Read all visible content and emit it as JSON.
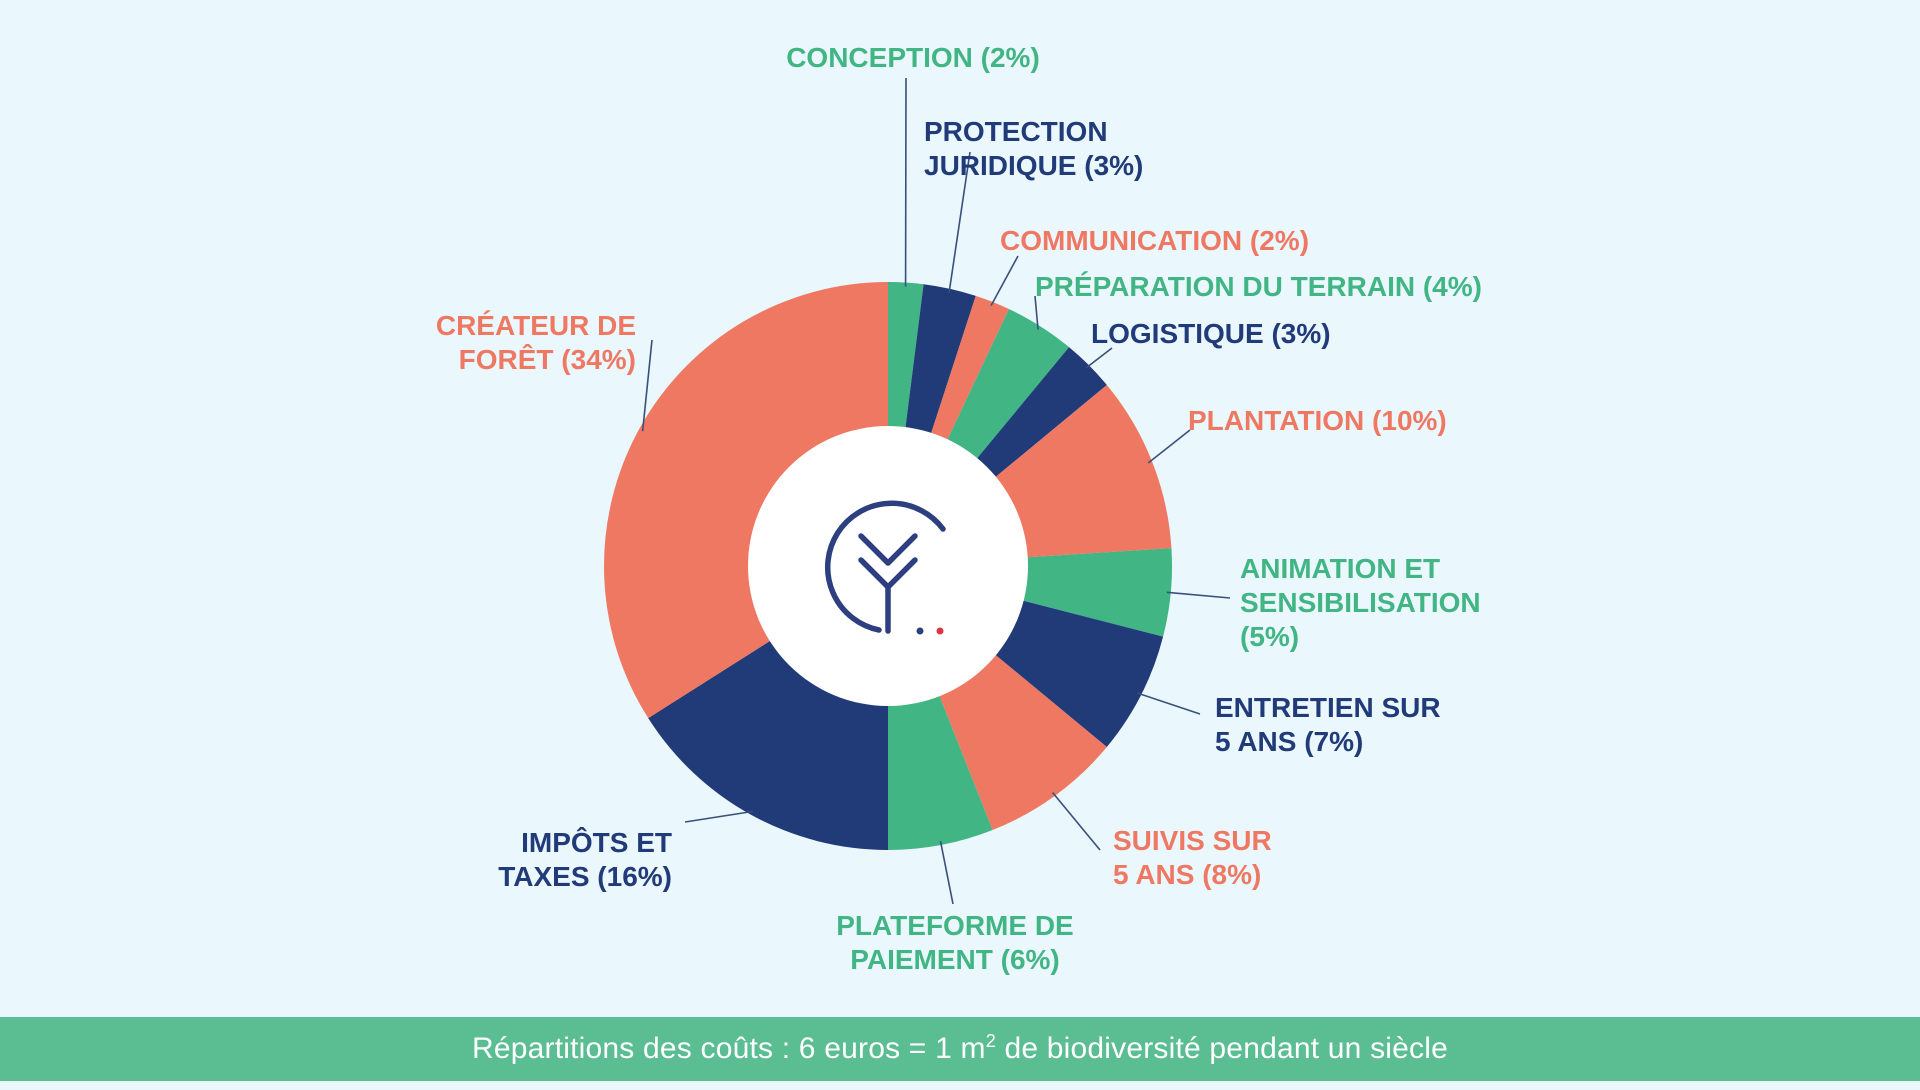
{
  "colors": {
    "background": "#eaf7fd",
    "coral": "#ef7863",
    "navy": "#213a78",
    "green": "#41b583",
    "caption_bar": "#5bbd92",
    "leader_line": "#3a4f7a"
  },
  "logo": {
    "icon": "leaf-check-logo-icon"
  },
  "caption": {
    "before": "Répartitions des coûts : 6 euros = 1 m",
    "sup": "2",
    "after": " de biodiversité pendant un siècle"
  },
  "chart_data": {
    "type": "pie",
    "donut": true,
    "start_angle_deg": 0,
    "direction": "clockwise",
    "slices": [
      {
        "name": "CONCEPTION",
        "value": 2,
        "value_label": "(2%)",
        "label_lines": [
          "CONCEPTION (2%)"
        ],
        "color": "green"
      },
      {
        "name": "PROTECTION JURIDIQUE",
        "value": 3,
        "value_label": "(3%)",
        "label_lines": [
          "PROTECTION",
          "JURIDIQUE (3%)"
        ],
        "color": "navy"
      },
      {
        "name": "COMMUNICATION",
        "value": 2,
        "value_label": "(2%)",
        "label_lines": [
          "COMMUNICATION (2%)"
        ],
        "color": "coral"
      },
      {
        "name": "PRÉPARATION DU TERRAIN",
        "value": 4,
        "value_label": "(4%)",
        "label_lines": [
          "PRÉPARATION DU TERRAIN (4%)"
        ],
        "color": "green"
      },
      {
        "name": "LOGISTIQUE",
        "value": 3,
        "value_label": "(3%)",
        "label_lines": [
          "LOGISTIQUE (3%)"
        ],
        "color": "navy"
      },
      {
        "name": "PLANTATION",
        "value": 10,
        "value_label": "(10%)",
        "label_lines": [
          "PLANTATION (10%)"
        ],
        "color": "coral"
      },
      {
        "name": "ANIMATION ET SENSIBILISATION",
        "value": 5,
        "value_label": "(5%)",
        "label_lines": [
          "ANIMATION ET",
          "SENSIBILISATION",
          "(5%)"
        ],
        "color": "green"
      },
      {
        "name": "ENTRETIEN SUR 5 ANS",
        "value": 7,
        "value_label": "(7%)",
        "label_lines": [
          "ENTRETIEN SUR",
          "5 ANS (7%)"
        ],
        "color": "navy"
      },
      {
        "name": "SUIVIS SUR 5 ANS",
        "value": 8,
        "value_label": "(8%)",
        "label_lines": [
          "SUIVIS SUR",
          "5 ANS (8%)"
        ],
        "color": "coral"
      },
      {
        "name": "PLATEFORME DE PAIEMENT",
        "value": 6,
        "value_label": "(6%)",
        "label_lines": [
          "PLATEFORME DE",
          "PAIEMENT (6%)"
        ],
        "color": "green"
      },
      {
        "name": "IMPÔTS ET TAXES",
        "value": 16,
        "value_label": "(16%)",
        "label_lines": [
          "IMPÔTS ET",
          "TAXES (16%)"
        ],
        "color": "navy"
      },
      {
        "name": "CRÉATEUR DE FORÊT",
        "value": 34,
        "value_label": "(34%)",
        "label_lines": [
          "CRÉATEUR DE",
          "FORÊT (34%)"
        ],
        "color": "coral"
      }
    ]
  }
}
